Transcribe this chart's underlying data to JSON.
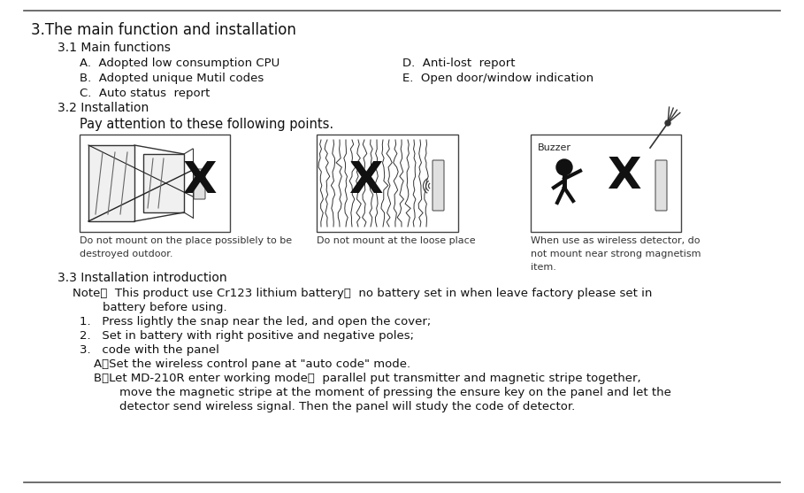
{
  "bg_color": "#ffffff",
  "border_color": "#555555",
  "title": "3.The main function and installation",
  "section_31": "3.1 Main functions",
  "items_left": [
    "A.  Adopted low consumption CPU",
    "B.  Adopted unique Mutil codes",
    "C.  Auto status  report"
  ],
  "items_right": [
    "D.  Anti-lost  report",
    "E.  Open door/window indication"
  ],
  "section_32": "3.2 Installation",
  "pay_attention": "Pay attention to these following points.",
  "img_caption1": "Do not mount on the place possiblely to be\ndestroyed outdoor.",
  "img_caption2": "Do not mount at the loose place",
  "img_caption3": "When use as wireless detector, do\nnot mount near strong magnetism\nitem.",
  "section_33": "3.3 Installation introduction",
  "note_line1": "Note：  This product use Cr123 lithium battery，  no battery set in when leave factory please set in",
  "note_line2": "        battery before using.",
  "steps": [
    "1.   Press lightly the snap near the led, and open the cover;",
    "2.   Set in battery with right positive and negative poles;",
    "3.   code with the panel"
  ],
  "sub_steps": [
    "A、Set the wireless control pane at \"auto code\" mode.",
    "B、Let MD-210R enter working mode，  parallel put transmitter and magnetic stripe together,",
    "    move the magnetic stripe at the moment of pressing the ensure key on the panel and let the",
    "    detector send wireless signal. Then the panel will study the code of detector."
  ],
  "title_fontsize": 12,
  "body_fontsize": 9.5,
  "caption_fontsize": 8,
  "note_fontsize": 9.5
}
